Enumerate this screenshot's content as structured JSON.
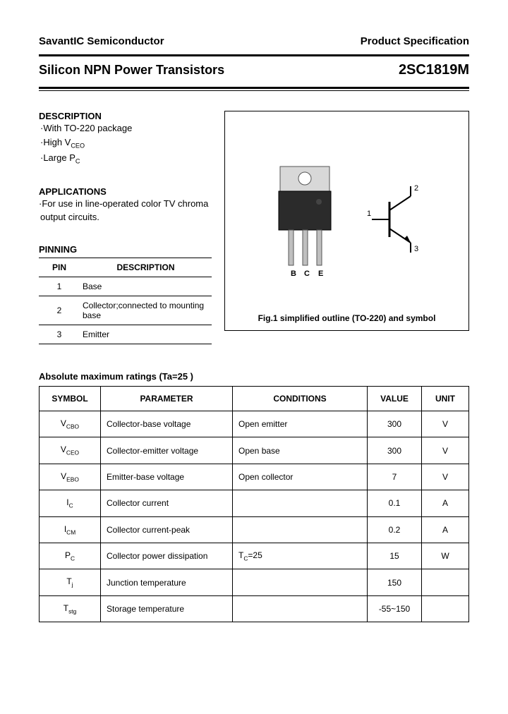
{
  "header": {
    "company": "SavantIC Semiconductor",
    "doc_type": "Product Specification",
    "product_family": "Silicon NPN Power Transistors",
    "part_number": "2SC1819M"
  },
  "description": {
    "heading": "DESCRIPTION",
    "items": [
      "·With TO-220 package",
      "·High V",
      "·Large P"
    ],
    "sub1": "CEO",
    "sub2": "C"
  },
  "applications": {
    "heading": "APPLICATIONS",
    "text": "·For use in line-operated color TV chroma output circuits."
  },
  "pinning": {
    "heading": "PINNING",
    "col_pin": "PIN",
    "col_desc": "DESCRIPTION",
    "rows": [
      {
        "pin": "1",
        "desc": "Base"
      },
      {
        "pin": "2",
        "desc": "Collector;connected to mounting base"
      },
      {
        "pin": "3",
        "desc": "Emitter"
      }
    ]
  },
  "figure": {
    "pin_labels": "B  C  E",
    "sym_1": "1",
    "sym_2": "2",
    "sym_3": "3",
    "caption": "Fig.1 simplified outline (TO-220) and symbol"
  },
  "ratings": {
    "heading": "Absolute maximum ratings (Ta=25 )",
    "columns": [
      "SYMBOL",
      "PARAMETER",
      "CONDITIONS",
      "VALUE",
      "UNIT"
    ],
    "rows": [
      {
        "sym": "V",
        "sub": "CBO",
        "param": "Collector-base voltage",
        "cond": "Open emitter",
        "val": "300",
        "unit": "V"
      },
      {
        "sym": "V",
        "sub": "CEO",
        "param": "Collector-emitter voltage",
        "cond": "Open base",
        "val": "300",
        "unit": "V"
      },
      {
        "sym": "V",
        "sub": "EBO",
        "param": "Emitter-base voltage",
        "cond": "Open collector",
        "val": "7",
        "unit": "V"
      },
      {
        "sym": "I",
        "sub": "C",
        "param": "Collector current",
        "cond": "",
        "val": "0.1",
        "unit": "A"
      },
      {
        "sym": "I",
        "sub": "CM",
        "param": "Collector current-peak",
        "cond": "",
        "val": "0.2",
        "unit": "A"
      },
      {
        "sym": "P",
        "sub": "C",
        "param": "Collector power dissipation",
        "cond": "T",
        "cond_sub": "C",
        "cond_tail": "=25",
        "val": "15",
        "unit": "W"
      },
      {
        "sym": "T",
        "sub": "j",
        "param": "Junction temperature",
        "cond": "",
        "val": "150",
        "unit": ""
      },
      {
        "sym": "T",
        "sub": "stg",
        "param": "Storage temperature",
        "cond": "",
        "val": "-55~150",
        "unit": ""
      }
    ]
  }
}
